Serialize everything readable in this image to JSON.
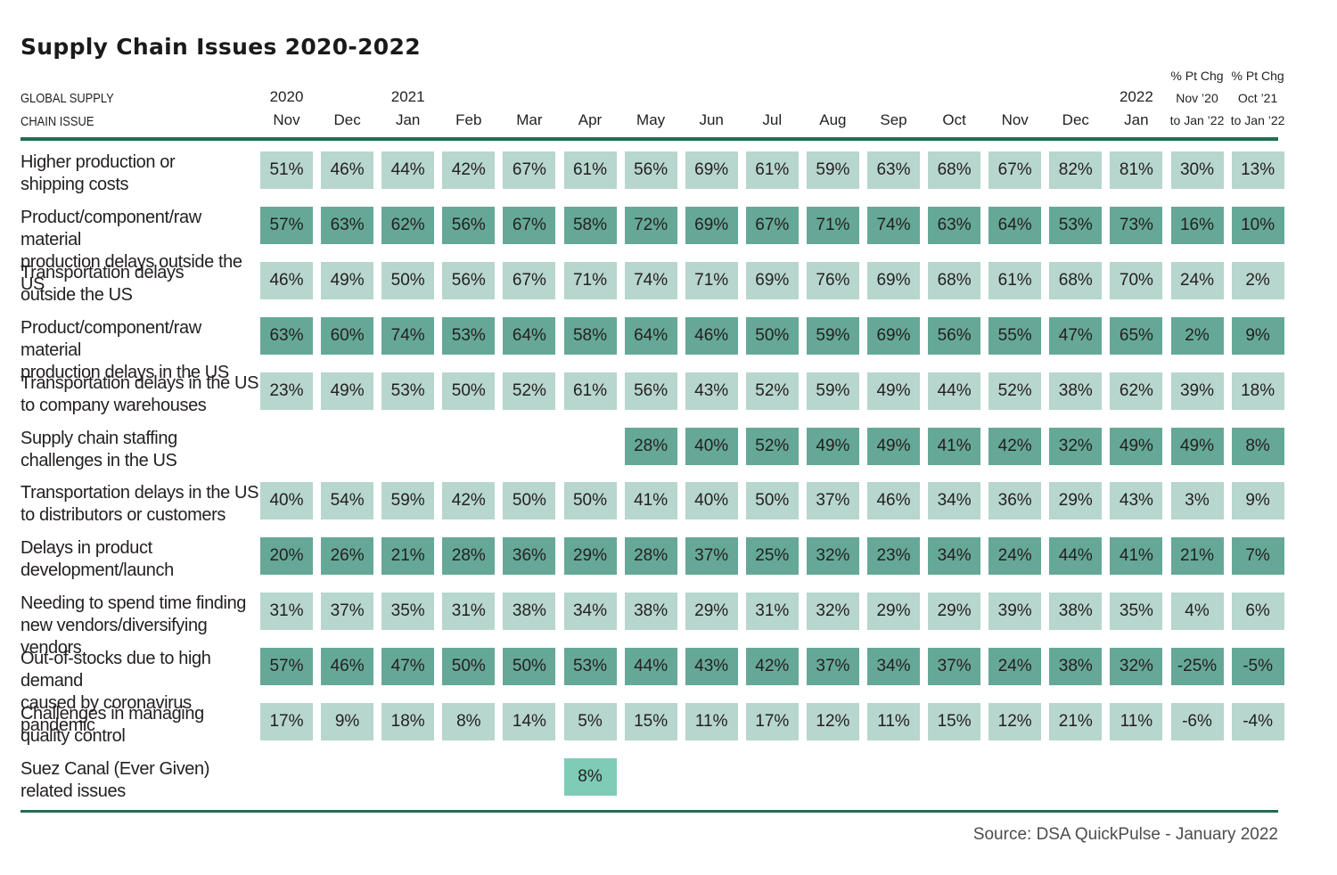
{
  "title": "Supply Chain Issues 2020-2022",
  "header_issue": [
    "GLOBAL SUPPLY",
    "CHAIN ISSUE"
  ],
  "columns": [
    {
      "l1": "2020",
      "l2": "Nov"
    },
    {
      "l1": "",
      "l2": "Dec"
    },
    {
      "l1": "2021",
      "l2": "Jan"
    },
    {
      "l1": "",
      "l2": "Feb"
    },
    {
      "l1": "",
      "l2": "Mar"
    },
    {
      "l1": "",
      "l2": "Apr"
    },
    {
      "l1": "",
      "l2": "May"
    },
    {
      "l1": "",
      "l2": "Jun"
    },
    {
      "l1": "",
      "l2": "Jul"
    },
    {
      "l1": "",
      "l2": "Aug"
    },
    {
      "l1": "",
      "l2": "Sep"
    },
    {
      "l1": "",
      "l2": "Oct"
    },
    {
      "l1": "",
      "l2": "Nov"
    },
    {
      "l1": "",
      "l2": "Dec"
    },
    {
      "l1": "2022",
      "l2": "Jan"
    },
    {
      "l0": "% Pt Chg",
      "l1": "Nov ’20",
      "l2": "to Jan ’22"
    },
    {
      "l0": "% Pt Chg",
      "l1": "Oct ’21",
      "l2": "to Jan ’22"
    }
  ],
  "colors": {
    "light": "#b7d6cd",
    "dark": "#66a897",
    "highlight": "#7ecbb6",
    "rule": "#1e6e52"
  },
  "chart_data": {
    "type": "table",
    "title": "Supply Chain Issues 2020-2022",
    "row_header": "GLOBAL SUPPLY CHAIN ISSUE",
    "rows": [
      {
        "label": [
          "Higher production or",
          "shipping costs"
        ],
        "shade": "light",
        "values": [
          "51%",
          "46%",
          "44%",
          "42%",
          "67%",
          "61%",
          "56%",
          "69%",
          "61%",
          "59%",
          "63%",
          "68%",
          "67%",
          "82%",
          "81%",
          "30%",
          "13%"
        ]
      },
      {
        "label": [
          "Product/component/raw material",
          "production delays outside the US"
        ],
        "shade": "dark",
        "values": [
          "57%",
          "63%",
          "62%",
          "56%",
          "67%",
          "58%",
          "72%",
          "69%",
          "67%",
          "71%",
          "74%",
          "63%",
          "64%",
          "53%",
          "73%",
          "16%",
          "10%"
        ]
      },
      {
        "label": [
          "Transportation delays",
          "outside the US"
        ],
        "shade": "light",
        "values": [
          "46%",
          "49%",
          "50%",
          "56%",
          "67%",
          "71%",
          "74%",
          "71%",
          "69%",
          "76%",
          "69%",
          "68%",
          "61%",
          "68%",
          "70%",
          "24%",
          "2%"
        ]
      },
      {
        "label": [
          "Product/component/raw material",
          "production delays in the US"
        ],
        "shade": "dark",
        "values": [
          "63%",
          "60%",
          "74%",
          "53%",
          "64%",
          "58%",
          "64%",
          "46%",
          "50%",
          "59%",
          "69%",
          "56%",
          "55%",
          "47%",
          "65%",
          "2%",
          "9%"
        ]
      },
      {
        "label": [
          "Transportation delays in the US",
          "to company warehouses"
        ],
        "shade": "light",
        "values": [
          "23%",
          "49%",
          "53%",
          "50%",
          "52%",
          "61%",
          "56%",
          "43%",
          "52%",
          "59%",
          "49%",
          "44%",
          "52%",
          "38%",
          "62%",
          "39%",
          "18%"
        ]
      },
      {
        "label": [
          "Supply chain staffing",
          "challenges in the US"
        ],
        "shade": "dark",
        "values": [
          null,
          null,
          null,
          null,
          null,
          null,
          "28%",
          "40%",
          "52%",
          "49%",
          "49%",
          "41%",
          "42%",
          "32%",
          "49%",
          "49%",
          "8%"
        ]
      },
      {
        "label": [
          "Transportation delays in the US",
          "to distributors or customers"
        ],
        "shade": "light",
        "values": [
          "40%",
          "54%",
          "59%",
          "42%",
          "50%",
          "50%",
          "41%",
          "40%",
          "50%",
          "37%",
          "46%",
          "34%",
          "36%",
          "29%",
          "43%",
          "3%",
          "9%"
        ]
      },
      {
        "label": [
          "Delays in product",
          "development/launch"
        ],
        "shade": "dark",
        "values": [
          "20%",
          "26%",
          "21%",
          "28%",
          "36%",
          "29%",
          "28%",
          "37%",
          "25%",
          "32%",
          "23%",
          "34%",
          "24%",
          "44%",
          "41%",
          "21%",
          "7%"
        ]
      },
      {
        "label": [
          "Needing to spend time finding",
          "new vendors/diversifying vendors"
        ],
        "shade": "light",
        "values": [
          "31%",
          "37%",
          "35%",
          "31%",
          "38%",
          "34%",
          "38%",
          "29%",
          "31%",
          "32%",
          "29%",
          "29%",
          "39%",
          "38%",
          "35%",
          "4%",
          "6%"
        ]
      },
      {
        "label": [
          "Out-of-stocks due to high demand",
          "caused by coronavirus pandemic"
        ],
        "shade": "dark",
        "values": [
          "57%",
          "46%",
          "47%",
          "50%",
          "50%",
          "53%",
          "44%",
          "43%",
          "42%",
          "37%",
          "34%",
          "37%",
          "24%",
          "38%",
          "32%",
          "-25%",
          "-5%"
        ]
      },
      {
        "label": [
          "Challenges in managing",
          "quality control"
        ],
        "shade": "light",
        "values": [
          "17%",
          "9%",
          "18%",
          "8%",
          "14%",
          "5%",
          "15%",
          "11%",
          "17%",
          "12%",
          "11%",
          "15%",
          "12%",
          "21%",
          "11%",
          "-6%",
          "-4%"
        ]
      },
      {
        "label": [
          "Suez Canal (Ever Given)",
          "related issues"
        ],
        "shade": "highlight",
        "values": [
          null,
          null,
          null,
          null,
          null,
          "8%",
          null,
          null,
          null,
          null,
          null,
          null,
          null,
          null,
          null,
          null,
          null
        ]
      }
    ]
  },
  "source": "Source: DSA QuickPulse - January 2022"
}
